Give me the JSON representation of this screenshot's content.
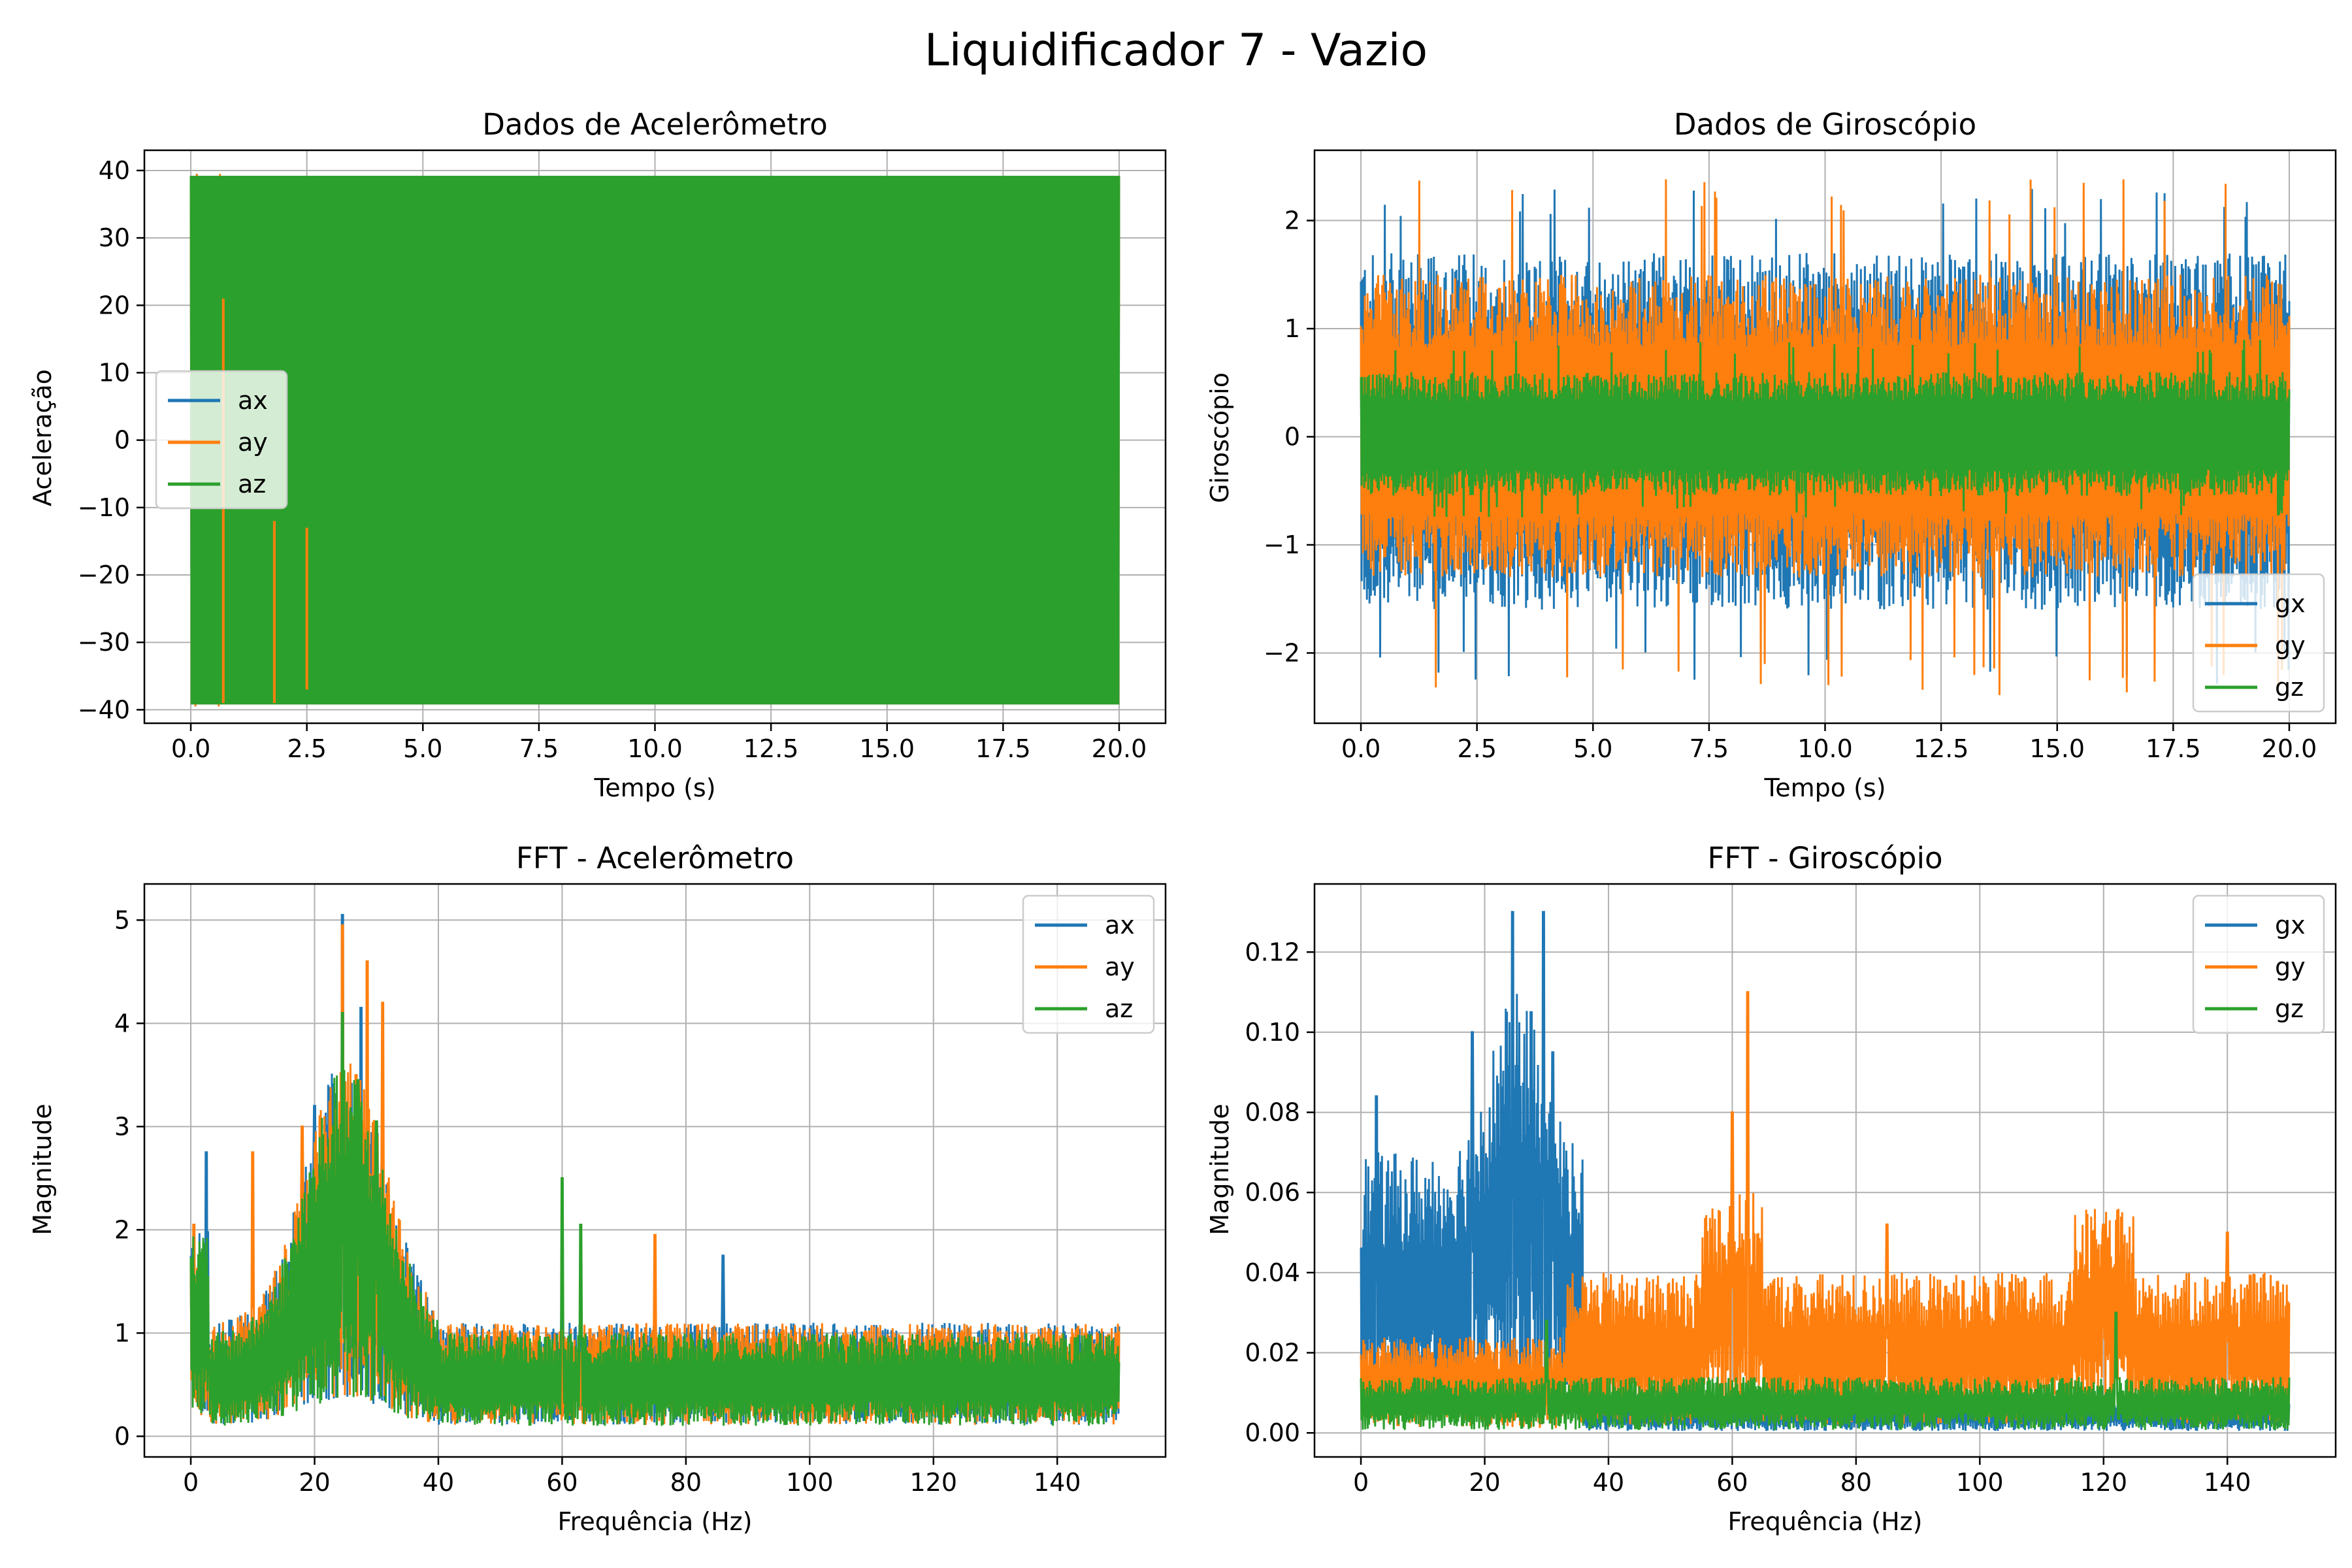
{
  "figure": {
    "title": "Liquidificador 7 - Vazio"
  },
  "colors": {
    "blue": "#1f77b4",
    "orange": "#ff7f0e",
    "green": "#2ca02c",
    "grid": "#b0b0b0"
  },
  "chart_data": [
    {
      "id": "accel",
      "type": "line",
      "title": "Dados de Acelerômetro",
      "xlabel": "Tempo (s)",
      "ylabel": "Aceleração",
      "xlim": [
        -1,
        21
      ],
      "ylim": [
        -42,
        43
      ],
      "xticks": [
        0,
        2.5,
        5,
        7.5,
        10,
        12.5,
        15,
        17.5,
        20
      ],
      "xtick_labels": [
        "0.0",
        "2.5",
        "5.0",
        "7.5",
        "10.0",
        "12.5",
        "15.0",
        "17.5",
        "20.0"
      ],
      "yticks": [
        -40,
        -30,
        -20,
        -10,
        0,
        10,
        20,
        30,
        40
      ],
      "ytick_labels": [
        "−40",
        "−30",
        "−20",
        "−10",
        "0",
        "10",
        "20",
        "30",
        "40"
      ],
      "grid": true,
      "legend": "center-left",
      "series": [
        {
          "name": "ax",
          "color": "#1f77b4",
          "x_range": [
            0,
            20
          ],
          "band": [
            -39.2,
            39.2
          ],
          "spikes": [
            [
              0.1,
              -39.5,
              39.5
            ]
          ]
        },
        {
          "name": "ay",
          "color": "#ff7f0e",
          "x_range": [
            0,
            20
          ],
          "band": [
            -39.2,
            39.2
          ],
          "spikes": [
            [
              0.1,
              -39.5,
              39.5
            ],
            [
              0.6,
              -39.5,
              39.5
            ]
          ]
        },
        {
          "name": "az",
          "color": "#2ca02c",
          "x_range": [
            0,
            20
          ],
          "band": [
            -39.2,
            39.2
          ],
          "spikes": [
            [
              0.7,
              21,
              -39
            ],
            [
              1.8,
              -12,
              -39
            ],
            [
              2.5,
              -13,
              -37
            ]
          ]
        }
      ]
    },
    {
      "id": "gyro",
      "type": "line",
      "title": "Dados de Giroscópio",
      "xlabel": "Tempo (s)",
      "ylabel": "Giroscópio",
      "xlim": [
        -1,
        21
      ],
      "ylim": [
        -2.65,
        2.65
      ],
      "xticks": [
        0,
        2.5,
        5,
        7.5,
        10,
        12.5,
        15,
        17.5,
        20
      ],
      "xtick_labels": [
        "0.0",
        "2.5",
        "5.0",
        "7.5",
        "10.0",
        "12.5",
        "15.0",
        "17.5",
        "20.0"
      ],
      "yticks": [
        -2,
        -1,
        0,
        1,
        2
      ],
      "ytick_labels": [
        "−2",
        "−1",
        "0",
        "1",
        "2"
      ],
      "grid": true,
      "legend": "lower-right",
      "series": [
        {
          "name": "gx",
          "color": "#1f77b4",
          "x_range": [
            0,
            20
          ],
          "envelope": [
            -2.3,
            2.3
          ],
          "typical": [
            -1.6,
            1.7
          ]
        },
        {
          "name": "gy",
          "color": "#ff7f0e",
          "x_range": [
            0,
            20
          ],
          "envelope": [
            -2.4,
            2.4
          ],
          "typical": [
            -1.3,
            1.5
          ]
        },
        {
          "name": "gz",
          "color": "#2ca02c",
          "x_range": [
            0,
            20
          ],
          "envelope": [
            -0.75,
            0.9
          ],
          "typical": [
            -0.55,
            0.6
          ]
        }
      ]
    },
    {
      "id": "fft-accel",
      "type": "line",
      "title": "FFT - Acelerômetro",
      "xlabel": "Frequência (Hz)",
      "ylabel": "Magnitude",
      "xlim": [
        -7.5,
        157.5
      ],
      "ylim": [
        -0.2,
        5.35
      ],
      "xticks": [
        0,
        20,
        40,
        60,
        80,
        100,
        120,
        140
      ],
      "xtick_labels": [
        "0",
        "20",
        "40",
        "60",
        "80",
        "100",
        "120",
        "140"
      ],
      "yticks": [
        0,
        1,
        2,
        3,
        4,
        5
      ],
      "ytick_labels": [
        "0",
        "1",
        "2",
        "3",
        "4",
        "5"
      ],
      "grid": true,
      "legend": "top-right",
      "series": [
        {
          "name": "ax",
          "color": "#1f77b4",
          "x_range": [
            0,
            150
          ],
          "peaks": [
            [
              2.5,
              2.75
            ],
            [
              24.5,
              5.05
            ],
            [
              27.5,
              4.15
            ],
            [
              20,
              3.2
            ],
            [
              60,
              1.5
            ],
            [
              86,
              1.75
            ]
          ],
          "baseline": 0.55
        },
        {
          "name": "ay",
          "color": "#ff7f0e",
          "x_range": [
            0,
            150
          ],
          "peaks": [
            [
              0.5,
              2.05
            ],
            [
              10,
              2.75
            ],
            [
              18,
              3.0
            ],
            [
              24.5,
              4.95
            ],
            [
              28.5,
              4.6
            ],
            [
              31,
              4.2
            ],
            [
              75,
              1.95
            ]
          ],
          "baseline": 0.55
        },
        {
          "name": "az",
          "color": "#2ca02c",
          "x_range": [
            0,
            150
          ],
          "peaks": [
            [
              24.5,
              4.1
            ],
            [
              27,
              3.45
            ],
            [
              30,
              3.05
            ],
            [
              60,
              2.5
            ],
            [
              63,
              2.05
            ]
          ],
          "baseline": 0.5
        }
      ]
    },
    {
      "id": "fft-gyro",
      "type": "line",
      "title": "FFT - Giroscópio",
      "xlabel": "Frequência (Hz)",
      "ylabel": "Magnitude",
      "xlim": [
        -7.5,
        157.5
      ],
      "ylim": [
        -0.006,
        0.137
      ],
      "xticks": [
        0,
        20,
        40,
        60,
        80,
        100,
        120,
        140
      ],
      "xtick_labels": [
        "0",
        "20",
        "40",
        "60",
        "80",
        "100",
        "120",
        "140"
      ],
      "yticks": [
        0,
        0.02,
        0.04,
        0.06,
        0.08,
        0.1,
        0.12
      ],
      "ytick_labels": [
        "0.00",
        "0.02",
        "0.04",
        "0.06",
        "0.08",
        "0.10",
        "0.12"
      ],
      "grid": true,
      "legend": "top-right",
      "series": [
        {
          "name": "gx",
          "color": "#1f77b4",
          "x_range": [
            0,
            150
          ],
          "peaks": [
            [
              2.5,
              0.084
            ],
            [
              18,
              0.1
            ],
            [
              24.5,
              0.13
            ],
            [
              27.5,
              0.105
            ],
            [
              29.5,
              0.13
            ],
            [
              31,
              0.095
            ]
          ]
        },
        {
          "name": "gy",
          "color": "#ff7f0e",
          "x_range": [
            0,
            150
          ],
          "peaks": [
            [
              60,
              0.08
            ],
            [
              62.5,
              0.11
            ],
            [
              85,
              0.052
            ],
            [
              120,
              0.052
            ],
            [
              140,
              0.05
            ]
          ]
        },
        {
          "name": "gz",
          "color": "#2ca02c",
          "x_range": [
            0,
            150
          ],
          "peaks": [
            [
              30,
              0.028
            ],
            [
              122,
              0.03
            ]
          ],
          "baseline": 0.007
        }
      ]
    }
  ]
}
